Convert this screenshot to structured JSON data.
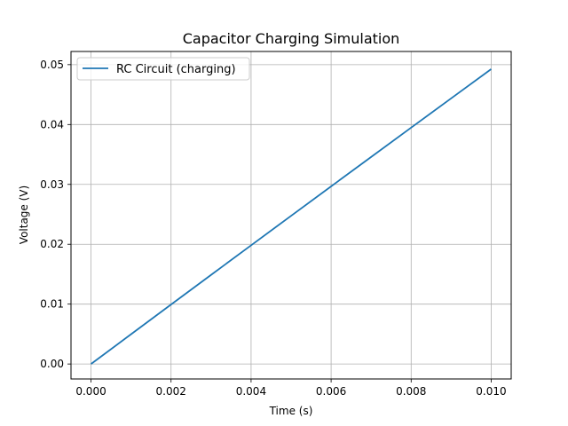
{
  "chart_data": {
    "type": "line",
    "title": "Capacitor Charging Simulation",
    "xlabel": "Time (s)",
    "ylabel": "Voltage (V)",
    "xlim": [
      -0.0005,
      0.0105
    ],
    "ylim": [
      -0.0025,
      0.0522
    ],
    "xticks": [
      0.0,
      0.002,
      0.004,
      0.006,
      0.008,
      0.01
    ],
    "xtick_labels": [
      "0.000",
      "0.002",
      "0.004",
      "0.006",
      "0.008",
      "0.010"
    ],
    "yticks": [
      0.0,
      0.01,
      0.02,
      0.03,
      0.04,
      0.05
    ],
    "ytick_labels": [
      "0.00",
      "0.01",
      "0.02",
      "0.03",
      "0.04",
      "0.05"
    ],
    "grid": true,
    "legend_position": "top-left",
    "series": [
      {
        "name": "RC Circuit (charging)",
        "color": "#1f77b4",
        "x": [
          0.0,
          0.001,
          0.002,
          0.003,
          0.004,
          0.005,
          0.006,
          0.007,
          0.008,
          0.009,
          0.01
        ],
        "y": [
          0.0,
          0.00497,
          0.00993,
          0.01488,
          0.01982,
          0.02475,
          0.02967,
          0.03458,
          0.03948,
          0.04437,
          0.04925
        ]
      }
    ]
  }
}
